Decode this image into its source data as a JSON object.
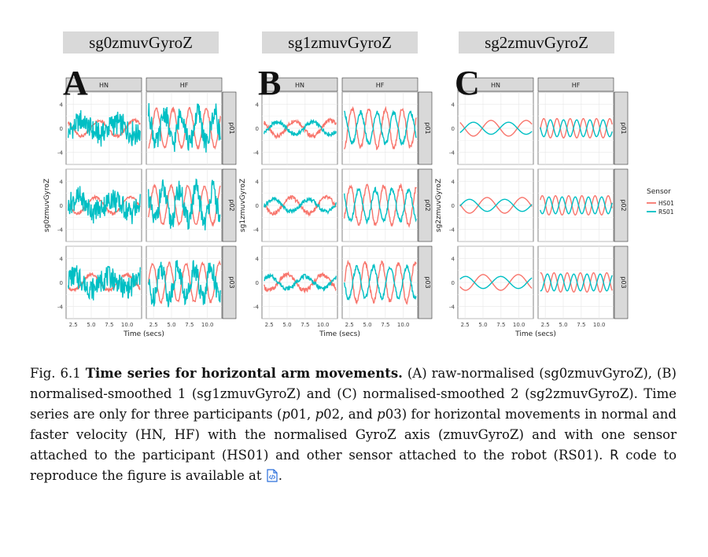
{
  "figure": {
    "panels": [
      {
        "letter": "A",
        "title": "sg0zmuvGyroZ",
        "ylabel": "sg0zmuvGyroZ"
      },
      {
        "letter": "B",
        "title": "sg1zmuvGyroZ",
        "ylabel": "sg1zmuvGyroZ"
      },
      {
        "letter": "C",
        "title": "sg2zmuvGyroZ",
        "ylabel": "sg2zmuvGyroZ"
      }
    ],
    "facet_cols": [
      "HN",
      "HF"
    ],
    "facet_rows": [
      "p01",
      "p02",
      "p03"
    ],
    "y_ticks": [
      "4",
      "0",
      "-4"
    ],
    "x_ticks": [
      "2.5",
      "5.0",
      "7.5",
      "10.0"
    ],
    "xlabel": "Time (secs)",
    "legend": {
      "title": "Sensor",
      "items": [
        {
          "label": "HS01",
          "color": "#f8766d"
        },
        {
          "label": "RS01",
          "color": "#00bfc4"
        }
      ]
    }
  },
  "chart_data": {
    "type": "line",
    "x_range": [
      1.5,
      12
    ],
    "y_range": [
      -6,
      6
    ],
    "series": [
      {
        "name": "HS01",
        "color": "#f8766d"
      },
      {
        "name": "RS01",
        "color": "#00bfc4"
      }
    ]
  },
  "caption": {
    "lead": "Fig. 6.1 ",
    "bold": "Time series for horizontal arm movements.",
    "t1": " (A) raw-normalised (sg0zmuvGyroZ), (B) normalised-smoothed 1 (sg1zmuvGyroZ) and (C) normalised-smoothed 2 (sg2zmuvGyroZ). Time series are only for three participants (",
    "p1": "p",
    "n1": "01, ",
    "p2": "p",
    "n2": "02, and ",
    "p3": "p",
    "n3": "03) for horizontal movements in normal and faster velocity (HN, HF) with the normalised GyroZ axis (zmuvGyroZ) and with one sensor attached to the participant (HS01) and other sensor attached to the robot (RS01). ",
    "r": "R",
    "t2": " code to reproduce the figure is available at ",
    "end": "."
  }
}
